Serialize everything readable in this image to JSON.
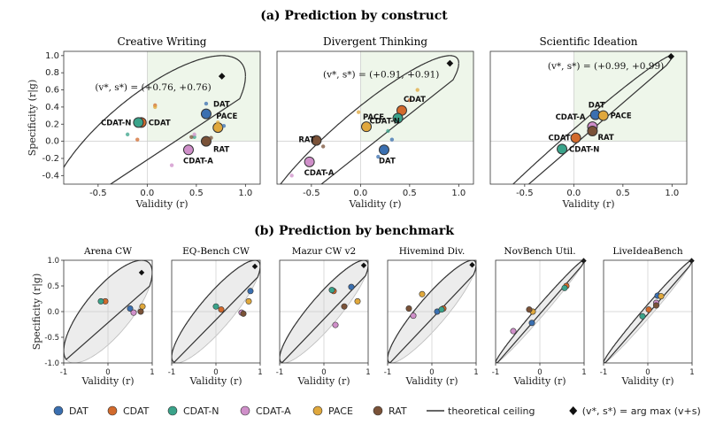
{
  "figure": {
    "section_a_title": "(a) Prediction by construct",
    "section_b_title": "(b) Prediction by benchmark"
  },
  "legend": {
    "items": [
      {
        "label": "DAT",
        "color": "#3a6fb0"
      },
      {
        "label": "CDAT",
        "color": "#d26a2c"
      },
      {
        "label": "CDAT-N",
        "color": "#3aa38a"
      },
      {
        "label": "CDAT-A",
        "color": "#cf8fc9"
      },
      {
        "label": "PACE",
        "color": "#e0a83c"
      },
      {
        "label": "RAT",
        "color": "#7a5238"
      }
    ],
    "ceiling_label": "theoretical ceiling",
    "argmax_label": "(v*, s*) = arg max (v+s)"
  },
  "chart_data": [
    {
      "type": "scatter",
      "title": "Creative Writing",
      "xlabel": "Validity (r)",
      "ylabel": "Specificity (r|g)",
      "xlim": [
        -0.85,
        1.15
      ],
      "ylim": [
        -0.5,
        1.05
      ],
      "xticks": [
        -0.5,
        0.0,
        0.5,
        1.0
      ],
      "yticks": [
        -0.4,
        -0.2,
        0.0,
        0.2,
        0.4,
        0.6,
        0.8,
        1.0
      ],
      "optimum": {
        "x": 0.76,
        "y": 0.76,
        "label": "(v*, s*) = (+0.76, +0.76)"
      },
      "points": [
        {
          "name": "DAT",
          "x": 0.6,
          "y": 0.32,
          "size": "large",
          "label": "DAT"
        },
        {
          "name": "CDAT",
          "x": -0.06,
          "y": 0.22,
          "size": "large",
          "label": "CDAT"
        },
        {
          "name": "CDAT-N",
          "x": -0.09,
          "y": 0.22,
          "size": "large",
          "label": "CDAT-N"
        },
        {
          "name": "CDAT-A",
          "x": 0.42,
          "y": -0.1,
          "size": "large",
          "label": "CDAT-A"
        },
        {
          "name": "PACE",
          "x": 0.72,
          "y": 0.16,
          "size": "large",
          "label": "PACE"
        },
        {
          "name": "RAT",
          "x": 0.6,
          "y": 0.0,
          "size": "large",
          "label": "RAT"
        },
        {
          "name": "DAT",
          "x": 0.78,
          "y": 0.18,
          "size": "small"
        },
        {
          "name": "DAT",
          "x": 0.6,
          "y": 0.44,
          "size": "small"
        },
        {
          "name": "CDAT",
          "x": 0.08,
          "y": 0.42,
          "size": "small"
        },
        {
          "name": "CDAT",
          "x": -0.1,
          "y": 0.02,
          "size": "small"
        },
        {
          "name": "CDAT-N",
          "x": -0.2,
          "y": 0.08,
          "size": "small"
        },
        {
          "name": "CDAT-N",
          "x": 0.48,
          "y": 0.05,
          "size": "small"
        },
        {
          "name": "CDAT-A",
          "x": 0.25,
          "y": -0.28,
          "size": "small"
        },
        {
          "name": "CDAT-A",
          "x": 0.48,
          "y": 0.08,
          "size": "small"
        },
        {
          "name": "PACE",
          "x": 0.08,
          "y": 0.4,
          "size": "small"
        },
        {
          "name": "PACE",
          "x": 0.72,
          "y": 0.22,
          "size": "small"
        },
        {
          "name": "RAT",
          "x": 0.45,
          "y": 0.05,
          "size": "small"
        },
        {
          "name": "RAT",
          "x": 0.65,
          "y": 0.04,
          "size": "small"
        }
      ]
    },
    {
      "type": "scatter",
      "title": "Divergent Thinking",
      "xlabel": "Validity (r)",
      "xlim": [
        -0.85,
        1.15
      ],
      "ylim": [
        -0.5,
        1.05
      ],
      "xticks": [
        -0.5,
        0.0,
        0.5,
        1.0
      ],
      "optimum": {
        "x": 0.91,
        "y": 0.91,
        "label": "(v*, s*) = (+0.91, +0.91)"
      },
      "points": [
        {
          "name": "DAT",
          "x": 0.24,
          "y": -0.1,
          "size": "large",
          "label": "DAT"
        },
        {
          "name": "CDAT",
          "x": 0.42,
          "y": 0.36,
          "size": "large",
          "label": "CDAT"
        },
        {
          "name": "CDAT-N",
          "x": 0.38,
          "y": 0.27,
          "size": "large",
          "label": "CDAT-N"
        },
        {
          "name": "CDAT-A",
          "x": -0.52,
          "y": -0.24,
          "size": "large",
          "label": "CDAT-A"
        },
        {
          "name": "PACE",
          "x": 0.06,
          "y": 0.17,
          "size": "large",
          "label": "PACE"
        },
        {
          "name": "RAT",
          "x": -0.45,
          "y": 0.01,
          "size": "large",
          "label": "RAT"
        },
        {
          "name": "DAT",
          "x": 0.32,
          "y": 0.02,
          "size": "small"
        },
        {
          "name": "DAT",
          "x": 0.18,
          "y": -0.18,
          "size": "small"
        },
        {
          "name": "CDAT",
          "x": 0.5,
          "y": 0.48,
          "size": "small"
        },
        {
          "name": "CDAT-N",
          "x": 0.28,
          "y": 0.12,
          "size": "small"
        },
        {
          "name": "CDAT-A",
          "x": -0.7,
          "y": -0.4,
          "size": "small"
        },
        {
          "name": "PACE",
          "x": -0.02,
          "y": 0.34,
          "size": "small"
        },
        {
          "name": "PACE",
          "x": 0.58,
          "y": 0.6,
          "size": "small"
        },
        {
          "name": "RAT",
          "x": -0.38,
          "y": -0.06,
          "size": "small"
        }
      ]
    },
    {
      "type": "scatter",
      "title": "Scientific Ideation",
      "xlabel": "Validity (r)",
      "xlim": [
        -0.85,
        1.15
      ],
      "ylim": [
        -0.5,
        1.05
      ],
      "xticks": [
        -0.5,
        0.0,
        0.5,
        1.0
      ],
      "optimum": {
        "x": 0.99,
        "y": 0.99,
        "label": "(v*, s*) = (+0.99, +0.99)"
      },
      "points": [
        {
          "name": "DAT",
          "x": 0.22,
          "y": 0.31,
          "size": "large",
          "label": "DAT"
        },
        {
          "name": "CDAT",
          "x": 0.02,
          "y": 0.04,
          "size": "large",
          "label": "CDAT"
        },
        {
          "name": "CDAT-N",
          "x": -0.12,
          "y": -0.09,
          "size": "large",
          "label": "CDAT-N"
        },
        {
          "name": "CDAT-A",
          "x": 0.19,
          "y": 0.17,
          "size": "large",
          "label": "CDAT-A"
        },
        {
          "name": "PACE",
          "x": 0.3,
          "y": 0.3,
          "size": "large",
          "label": "PACE"
        },
        {
          "name": "RAT",
          "x": 0.19,
          "y": 0.12,
          "size": "large",
          "label": "RAT"
        }
      ]
    },
    {
      "type": "scatter",
      "title": "Arena CW",
      "xlabel": "Validity (r)",
      "ylabel": "Specificity (r|g)",
      "xlim": [
        -1,
        1
      ],
      "ylim": [
        -1,
        1
      ],
      "xticks": [
        -1,
        0,
        1
      ],
      "yticks": [
        -1.0,
        -0.5,
        0.0,
        0.5,
        1.0
      ],
      "optimum": {
        "x": 0.76,
        "y": 0.76
      },
      "points": [
        {
          "name": "DAT",
          "x": 0.5,
          "y": 0.06
        },
        {
          "name": "CDAT",
          "x": -0.06,
          "y": 0.2
        },
        {
          "name": "CDAT-N",
          "x": -0.16,
          "y": 0.2
        },
        {
          "name": "CDAT-A",
          "x": 0.58,
          "y": -0.02
        },
        {
          "name": "PACE",
          "x": 0.78,
          "y": 0.1
        },
        {
          "name": "RAT",
          "x": 0.74,
          "y": 0.0
        }
      ]
    },
    {
      "type": "scatter",
      "title": "EQ-Bench CW",
      "xlabel": "Validity (r)",
      "xlim": [
        -1,
        1
      ],
      "ylim": [
        -1,
        1
      ],
      "xticks": [
        -1,
        0,
        1
      ],
      "optimum": {
        "x": 0.88,
        "y": 0.88
      },
      "points": [
        {
          "name": "DAT",
          "x": 0.78,
          "y": 0.4
        },
        {
          "name": "CDAT",
          "x": 0.12,
          "y": 0.04
        },
        {
          "name": "CDAT-N",
          "x": 0.0,
          "y": 0.1
        },
        {
          "name": "CDAT-A",
          "x": 0.58,
          "y": -0.02
        },
        {
          "name": "PACE",
          "x": 0.74,
          "y": 0.2
        },
        {
          "name": "RAT",
          "x": 0.62,
          "y": -0.04
        }
      ]
    },
    {
      "type": "scatter",
      "title": "Mazur CW v2",
      "xlabel": "Validity (r)",
      "xlim": [
        -1,
        1
      ],
      "ylim": [
        -1,
        1
      ],
      "xticks": [
        -1,
        0,
        1
      ],
      "optimum": {
        "x": 0.9,
        "y": 0.9
      },
      "points": [
        {
          "name": "DAT",
          "x": 0.62,
          "y": 0.48
        },
        {
          "name": "CDAT",
          "x": 0.22,
          "y": 0.4
        },
        {
          "name": "CDAT-N",
          "x": 0.18,
          "y": 0.42
        },
        {
          "name": "CDAT-A",
          "x": 0.26,
          "y": -0.26
        },
        {
          "name": "PACE",
          "x": 0.76,
          "y": 0.2
        },
        {
          "name": "RAT",
          "x": 0.46,
          "y": 0.1
        }
      ]
    },
    {
      "type": "scatter",
      "title": "Hivemind Div.",
      "xlabel": "Validity (r)",
      "xlim": [
        -1,
        1
      ],
      "ylim": [
        -1,
        1
      ],
      "xticks": [
        -1,
        0,
        1
      ],
      "optimum": {
        "x": 0.91,
        "y": 0.91
      },
      "points": [
        {
          "name": "DAT",
          "x": 0.12,
          "y": 0.0
        },
        {
          "name": "CDAT",
          "x": 0.26,
          "y": 0.06
        },
        {
          "name": "CDAT-N",
          "x": 0.22,
          "y": 0.04
        },
        {
          "name": "CDAT-A",
          "x": -0.42,
          "y": -0.08
        },
        {
          "name": "PACE",
          "x": -0.22,
          "y": 0.34
        },
        {
          "name": "RAT",
          "x": -0.52,
          "y": 0.06
        }
      ]
    },
    {
      "type": "scatter",
      "title": "NovBench Util.",
      "xlabel": "Validity (r)",
      "xlim": [
        -1,
        1
      ],
      "ylim": [
        -1,
        1
      ],
      "xticks": [
        -1,
        0,
        1
      ],
      "optimum": {
        "x": 0.99,
        "y": 0.99
      },
      "points": [
        {
          "name": "DAT",
          "x": -0.18,
          "y": -0.22
        },
        {
          "name": "CDAT",
          "x": 0.6,
          "y": 0.5
        },
        {
          "name": "CDAT-N",
          "x": 0.56,
          "y": 0.46
        },
        {
          "name": "CDAT-A",
          "x": -0.6,
          "y": -0.38
        },
        {
          "name": "PACE",
          "x": -0.16,
          "y": 0.0
        },
        {
          "name": "RAT",
          "x": -0.24,
          "y": 0.04
        }
      ]
    },
    {
      "type": "scatter",
      "title": "LiveIdeaBench",
      "xlabel": "Validity (r)",
      "xlim": [
        -1,
        1
      ],
      "ylim": [
        -1,
        1
      ],
      "xticks": [
        -1,
        0,
        1
      ],
      "optimum": {
        "x": 0.99,
        "y": 0.99
      },
      "points": [
        {
          "name": "DAT",
          "x": 0.22,
          "y": 0.31
        },
        {
          "name": "CDAT",
          "x": 0.02,
          "y": 0.04
        },
        {
          "name": "CDAT-N",
          "x": -0.12,
          "y": -0.09
        },
        {
          "name": "CDAT-A",
          "x": 0.19,
          "y": 0.17
        },
        {
          "name": "PACE",
          "x": 0.3,
          "y": 0.3
        },
        {
          "name": "RAT",
          "x": 0.19,
          "y": 0.12
        }
      ]
    }
  ]
}
